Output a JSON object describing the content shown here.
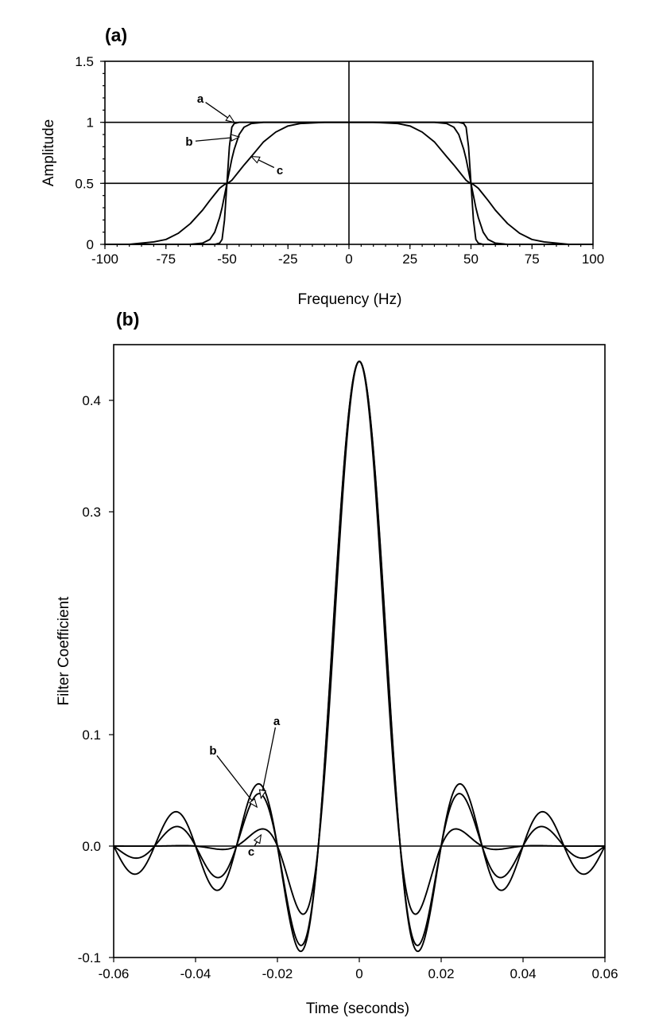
{
  "chart_data": [
    {
      "panel": "(a)",
      "type": "line",
      "xlabel": "Frequency (Hz)",
      "ylabel": "Amplitude",
      "xlim": [
        -100,
        100
      ],
      "ylim": [
        0,
        1.5
      ],
      "xticks": [
        -100,
        -75,
        -50,
        -25,
        0,
        25,
        50,
        75,
        100
      ],
      "xtick_labels": [
        "-100",
        "-75",
        "-50",
        "-25",
        "0",
        "25",
        "50",
        "75",
        "100"
      ],
      "yticks": [
        0,
        0.5,
        1,
        1.5
      ],
      "ytick_labels": [
        "0",
        "0.5",
        "1",
        "1.5"
      ],
      "reference_lines": {
        "horizontal": [
          0.5,
          1.0
        ],
        "vertical": [
          0
        ]
      },
      "x": [
        -100,
        -90,
        -80,
        -75,
        -70,
        -65,
        -60,
        -57,
        -55,
        -53,
        -52,
        -51,
        -50,
        -49,
        -48,
        -47,
        -45,
        -43,
        -40,
        -35,
        -30,
        -25,
        -20,
        -10,
        0,
        10,
        20,
        25,
        30,
        35,
        40,
        43,
        45,
        47,
        48,
        49,
        50,
        51,
        52,
        53,
        55,
        57,
        60,
        65,
        70,
        75,
        80,
        90,
        100
      ],
      "series": [
        {
          "name": "a",
          "values": [
            0,
            0,
            0,
            0,
            0,
            0,
            0,
            0,
            0,
            0.01,
            0.04,
            0.2,
            0.5,
            0.8,
            0.96,
            0.99,
            1,
            1,
            1,
            1,
            1,
            1,
            1,
            1,
            1,
            1,
            1,
            1,
            1,
            1,
            1,
            1,
            1,
            0.99,
            0.96,
            0.8,
            0.5,
            0.2,
            0.04,
            0.01,
            0,
            0,
            0,
            0,
            0,
            0,
            0,
            0,
            0
          ]
        },
        {
          "name": "b",
          "values": [
            0,
            0,
            0,
            0,
            0,
            0,
            0.01,
            0.04,
            0.1,
            0.22,
            0.3,
            0.4,
            0.5,
            0.6,
            0.7,
            0.78,
            0.9,
            0.96,
            0.99,
            1,
            1,
            1,
            1,
            1,
            1,
            1,
            1,
            1,
            1,
            1,
            0.99,
            0.96,
            0.9,
            0.78,
            0.7,
            0.6,
            0.5,
            0.4,
            0.3,
            0.22,
            0.1,
            0.04,
            0.01,
            0,
            0,
            0,
            0,
            0,
            0
          ]
        },
        {
          "name": "c",
          "values": [
            0,
            0,
            0.02,
            0.04,
            0.09,
            0.17,
            0.28,
            0.36,
            0.41,
            0.46,
            0.475,
            0.49,
            0.5,
            0.51,
            0.525,
            0.55,
            0.6,
            0.65,
            0.72,
            0.84,
            0.92,
            0.97,
            0.99,
            1,
            1,
            1,
            0.99,
            0.97,
            0.92,
            0.84,
            0.72,
            0.65,
            0.6,
            0.55,
            0.525,
            0.51,
            0.5,
            0.49,
            0.475,
            0.46,
            0.41,
            0.36,
            0.28,
            0.17,
            0.09,
            0.04,
            0.02,
            0,
            0
          ]
        }
      ],
      "annotations": [
        {
          "text": "a",
          "points_to": [
            -47,
            1.0
          ]
        },
        {
          "text": "b",
          "points_to": [
            -45,
            0.88
          ]
        },
        {
          "text": "c",
          "points_to": [
            -40,
            0.72
          ]
        }
      ]
    },
    {
      "panel": "(b)",
      "type": "line",
      "xlabel": "Time (seconds)",
      "ylabel": "Filter Coefficient",
      "xlim": [
        -0.06,
        0.06
      ],
      "ylim": [
        -0.1,
        0.45
      ],
      "xticks": [
        -0.06,
        -0.04,
        -0.02,
        0,
        0.02,
        0.04,
        0.06
      ],
      "xtick_labels": [
        "-0.06",
        "-0.04",
        "-0.02",
        "0",
        "0.02",
        "0.04",
        "0.06"
      ],
      "yticks": [
        -0.1,
        0.0,
        0.1,
        0.3,
        0.4
      ],
      "ytick_labels": [
        "-0.1",
        "0.0",
        "0.1",
        "0.3",
        "0.4"
      ],
      "reference_lines": {
        "horizontal": [
          0.0
        ]
      },
      "series": [
        {
          "name": "a",
          "peak": 0.435,
          "envelope": "none",
          "description": "band-limited sinc, side lobes ±0.043 at t=±0.024"
        },
        {
          "name": "b",
          "peak": 0.435,
          "envelope": "moderate",
          "description": "tapered sinc, side lobes ±0.035 at t=±0.024"
        },
        {
          "name": "c",
          "peak": 0.435,
          "envelope": "strong",
          "description": "heavily tapered sinc, side lobes ±0.01 at t=±0.024"
        }
      ],
      "annotations": [
        {
          "text": "a",
          "points_to": [
            -0.024,
            0.043
          ]
        },
        {
          "text": "b",
          "points_to": [
            -0.025,
            0.035
          ]
        },
        {
          "text": "c",
          "points_to": [
            -0.024,
            0.01
          ]
        }
      ]
    }
  ]
}
